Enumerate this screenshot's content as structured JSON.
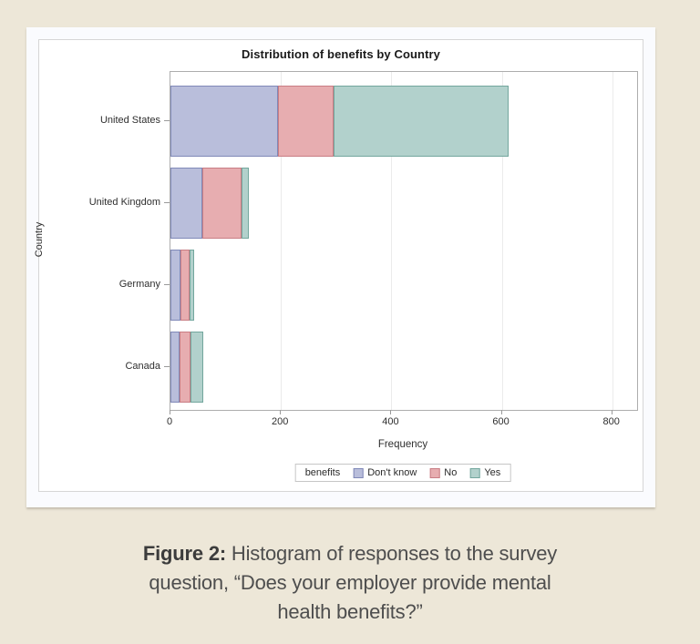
{
  "figure": {
    "caption": {
      "label": "Figure 2:",
      "lines": [
        "Histogram of responses to the survey",
        "question, “Does your employer provide mental",
        "health benefits?”"
      ]
    }
  },
  "chart_data": {
    "type": "bar",
    "orientation": "horizontal",
    "stacked": true,
    "title": "Distribution of benefits by Country",
    "xlabel": "Frequency",
    "ylabel": "Country",
    "categories": [
      "United States",
      "United Kingdom",
      "Germany",
      "Canada"
    ],
    "series": [
      {
        "name": "Don't know",
        "values": [
          195,
          57,
          18,
          17
        ],
        "fill": "#B9BEDB",
        "border": "#8089B8"
      },
      {
        "name": "No",
        "values": [
          100,
          71,
          17,
          19
        ],
        "fill": "#E7ADB0",
        "border": "#C87D84"
      },
      {
        "name": "Yes",
        "values": [
          318,
          14,
          8,
          23
        ],
        "fill": "#B2D1CC",
        "border": "#73A69D"
      }
    ],
    "totals": [
      613,
      142,
      43,
      59
    ],
    "xlim": [
      0,
      845
    ],
    "xticks": [
      0,
      200,
      400,
      600,
      800
    ],
    "grid": "vertical",
    "legend": {
      "title": "benefits",
      "position": "bottom"
    }
  }
}
